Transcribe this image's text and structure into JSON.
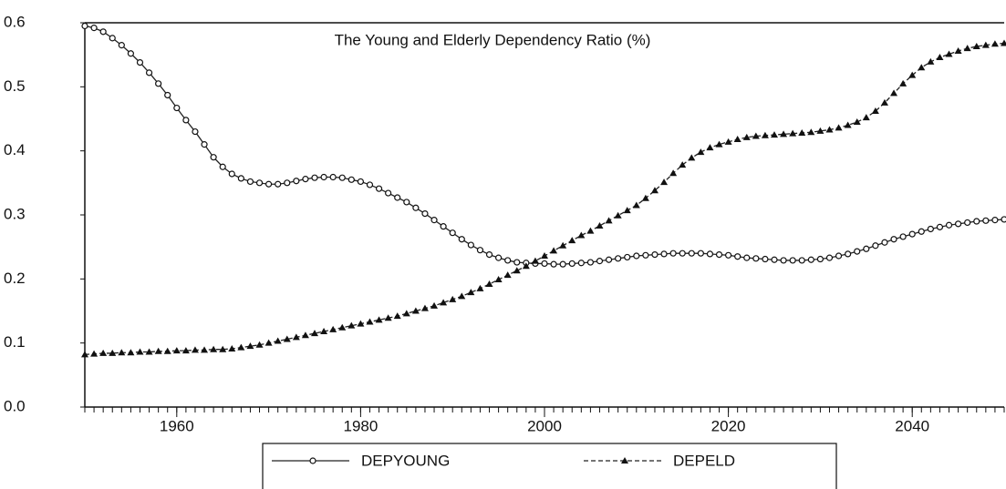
{
  "chart_data": {
    "type": "line",
    "title": "The Young and Elderly Dependency Ratio (%)",
    "x": [
      1950,
      1951,
      1952,
      1953,
      1954,
      1955,
      1956,
      1957,
      1958,
      1959,
      1960,
      1961,
      1962,
      1963,
      1964,
      1965,
      1966,
      1967,
      1968,
      1969,
      1970,
      1971,
      1972,
      1973,
      1974,
      1975,
      1976,
      1977,
      1978,
      1979,
      1980,
      1981,
      1982,
      1983,
      1984,
      1985,
      1986,
      1987,
      1988,
      1989,
      1990,
      1991,
      1992,
      1993,
      1994,
      1995,
      1996,
      1997,
      1998,
      1999,
      2000,
      2001,
      2002,
      2003,
      2004,
      2005,
      2006,
      2007,
      2008,
      2009,
      2010,
      2011,
      2012,
      2013,
      2014,
      2015,
      2016,
      2017,
      2018,
      2019,
      2020,
      2021,
      2022,
      2023,
      2024,
      2025,
      2026,
      2027,
      2028,
      2029,
      2030,
      2031,
      2032,
      2033,
      2034,
      2035,
      2036,
      2037,
      2038,
      2039,
      2040,
      2041,
      2042,
      2043,
      2044,
      2045,
      2046,
      2047,
      2048,
      2049,
      2050
    ],
    "series": [
      {
        "name": "DEPYOUNG",
        "color": "#222222",
        "marker": "circle",
        "line_style": "solid",
        "values": [
          0.595,
          0.592,
          0.586,
          0.576,
          0.565,
          0.552,
          0.538,
          0.522,
          0.505,
          0.487,
          0.467,
          0.448,
          0.43,
          0.41,
          0.39,
          0.375,
          0.364,
          0.357,
          0.352,
          0.35,
          0.348,
          0.348,
          0.35,
          0.353,
          0.356,
          0.358,
          0.359,
          0.359,
          0.358,
          0.355,
          0.352,
          0.347,
          0.341,
          0.334,
          0.327,
          0.32,
          0.311,
          0.302,
          0.292,
          0.282,
          0.272,
          0.262,
          0.253,
          0.245,
          0.238,
          0.233,
          0.229,
          0.226,
          0.225,
          0.224,
          0.224,
          0.223,
          0.223,
          0.224,
          0.225,
          0.226,
          0.228,
          0.23,
          0.232,
          0.234,
          0.236,
          0.237,
          0.238,
          0.239,
          0.24,
          0.24,
          0.24,
          0.24,
          0.239,
          0.238,
          0.237,
          0.235,
          0.233,
          0.232,
          0.231,
          0.23,
          0.229,
          0.229,
          0.229,
          0.23,
          0.231,
          0.233,
          0.236,
          0.239,
          0.243,
          0.247,
          0.252,
          0.257,
          0.262,
          0.266,
          0.27,
          0.274,
          0.278,
          0.281,
          0.284,
          0.286,
          0.288,
          0.29,
          0.291,
          0.292,
          0.293
        ]
      },
      {
        "name": "DEPELD",
        "color": "#222222",
        "marker": "triangle",
        "line_style": "dashed",
        "values": [
          0.082,
          0.083,
          0.084,
          0.084,
          0.085,
          0.085,
          0.086,
          0.086,
          0.087,
          0.087,
          0.088,
          0.088,
          0.089,
          0.089,
          0.09,
          0.09,
          0.091,
          0.093,
          0.095,
          0.097,
          0.1,
          0.103,
          0.106,
          0.109,
          0.112,
          0.115,
          0.118,
          0.121,
          0.124,
          0.127,
          0.13,
          0.133,
          0.136,
          0.139,
          0.142,
          0.146,
          0.15,
          0.154,
          0.158,
          0.163,
          0.168,
          0.173,
          0.179,
          0.185,
          0.192,
          0.199,
          0.206,
          0.213,
          0.22,
          0.228,
          0.236,
          0.244,
          0.252,
          0.26,
          0.268,
          0.275,
          0.283,
          0.291,
          0.299,
          0.307,
          0.315,
          0.326,
          0.338,
          0.351,
          0.365,
          0.378,
          0.389,
          0.398,
          0.405,
          0.41,
          0.414,
          0.418,
          0.421,
          0.423,
          0.424,
          0.425,
          0.426,
          0.427,
          0.428,
          0.429,
          0.431,
          0.433,
          0.436,
          0.44,
          0.445,
          0.452,
          0.462,
          0.475,
          0.49,
          0.505,
          0.518,
          0.53,
          0.539,
          0.546,
          0.551,
          0.556,
          0.56,
          0.563,
          0.565,
          0.567,
          0.568
        ]
      }
    ],
    "xlim": [
      1950,
      2050
    ],
    "xticks": [
      1960,
      1980,
      2000,
      2020,
      2040
    ],
    "ylim": [
      0,
      0.6
    ],
    "yticks": [
      {
        "value": 0,
        "label": "0.0"
      },
      0.1,
      0.2,
      0.3,
      0.4,
      0.5,
      0.6
    ],
    "grid": false,
    "legend": "bottom"
  }
}
